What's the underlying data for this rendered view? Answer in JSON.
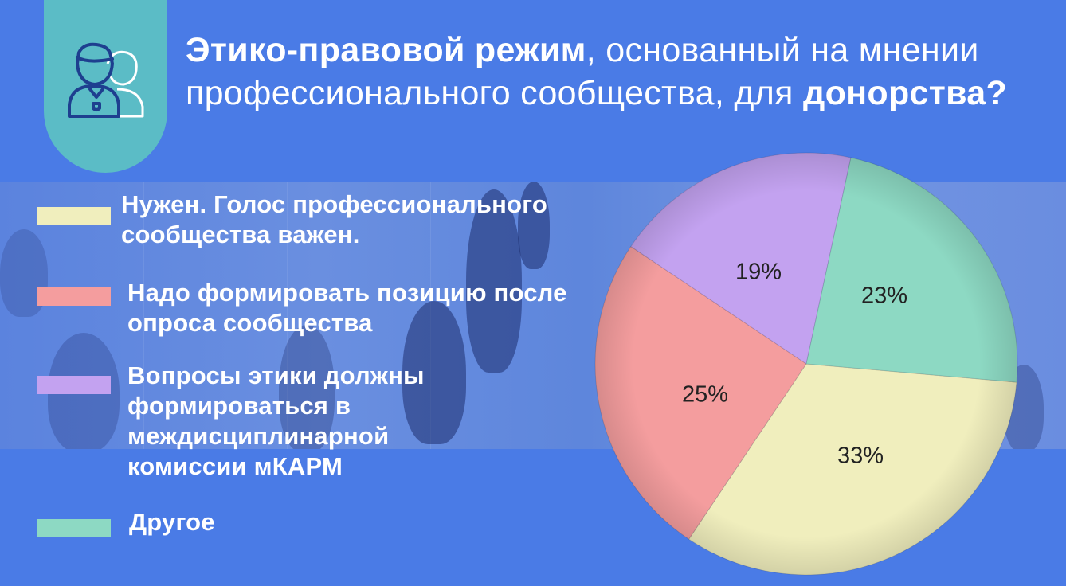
{
  "title": {
    "part1_bold": "Этико-правовой режим",
    "part2": ", основанный на мнении профессионального сообщества, для ",
    "part3_bold": "донорства?"
  },
  "icon": {
    "name": "users-icon",
    "tab_color": "#5bbcc6"
  },
  "colors": {
    "background": "#4a7be6"
  },
  "chart_data": {
    "type": "pie",
    "title": "",
    "slices": [
      {
        "label": "Нужен. Голос профессионального сообщества важен.",
        "value": 33,
        "display": "33%",
        "color": "#f0eebd"
      },
      {
        "label": "Надо формировать позицию после опроса сообщества",
        "value": 25,
        "display": "25%",
        "color": "#f49d9e"
      },
      {
        "label": "Вопросы этики должны формироваться в междисциплинарной комиссии мКАРМ",
        "value": 19,
        "display": "19%",
        "color": "#c3a2f0"
      },
      {
        "label": "Другое",
        "value": 23,
        "display": "23%",
        "color": "#8dd9c3"
      }
    ],
    "legend_position": "left"
  }
}
